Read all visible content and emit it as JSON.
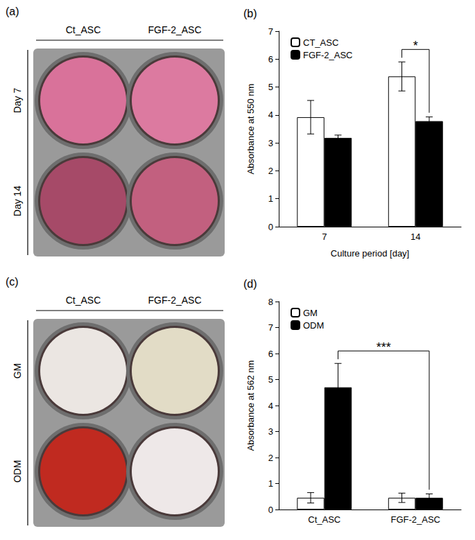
{
  "images": [
    {
      "panel": "(a)",
      "columns": [
        "Ct_ASC",
        "FGF-2_ASC"
      ],
      "rows": [
        "Day 7",
        "Day 14"
      ]
    },
    {
      "panel": "(c)",
      "columns": [
        "Ct_ASC",
        "FGF-2_ASC"
      ],
      "rows": [
        "GM",
        "ODM"
      ]
    }
  ],
  "chart_data": [
    {
      "panel": "(b)",
      "type": "bar",
      "categories": [
        "7",
        "14"
      ],
      "x_label": "Culture period [day]",
      "y_label": "Absorbance at 550 nm",
      "ylim": [
        0,
        7
      ],
      "yticks": [
        0,
        1,
        2,
        3,
        4,
        5,
        6,
        7
      ],
      "grid": false,
      "legend": "upper left",
      "series": [
        {
          "name": "CT_ASC",
          "color": "#ffffff",
          "values": [
            3.92,
            5.38
          ],
          "errors": [
            0.6,
            0.52
          ]
        },
        {
          "name": "FGF-2_ASC",
          "color": "#000000",
          "values": [
            3.18,
            3.78
          ],
          "errors": [
            0.1,
            0.15
          ]
        }
      ],
      "significance": [
        {
          "category_from": "14",
          "series_from": "CT_ASC",
          "category_to": "14",
          "series_to": "FGF-2_ASC",
          "label": "*"
        }
      ]
    },
    {
      "panel": "(d)",
      "type": "bar",
      "categories": [
        "Ct_ASC",
        "FGF-2_ASC"
      ],
      "y_label": "Absorbance at 562 nm",
      "ylim": [
        0,
        8
      ],
      "yticks": [
        0,
        1,
        2,
        3,
        4,
        5,
        6,
        7,
        8
      ],
      "grid": false,
      "legend": "upper left",
      "series": [
        {
          "name": "GM",
          "color": "#ffffff",
          "values": [
            0.45,
            0.45
          ],
          "errors": [
            0.2,
            0.18
          ]
        },
        {
          "name": "ODM",
          "color": "#000000",
          "values": [
            4.7,
            0.45
          ],
          "errors": [
            0.92,
            0.15
          ]
        }
      ],
      "significance": [
        {
          "category_from": "Ct_ASC",
          "series_from": "ODM",
          "category_to": "FGF-2_ASC",
          "series_to": "ODM",
          "label": "***"
        }
      ]
    }
  ]
}
